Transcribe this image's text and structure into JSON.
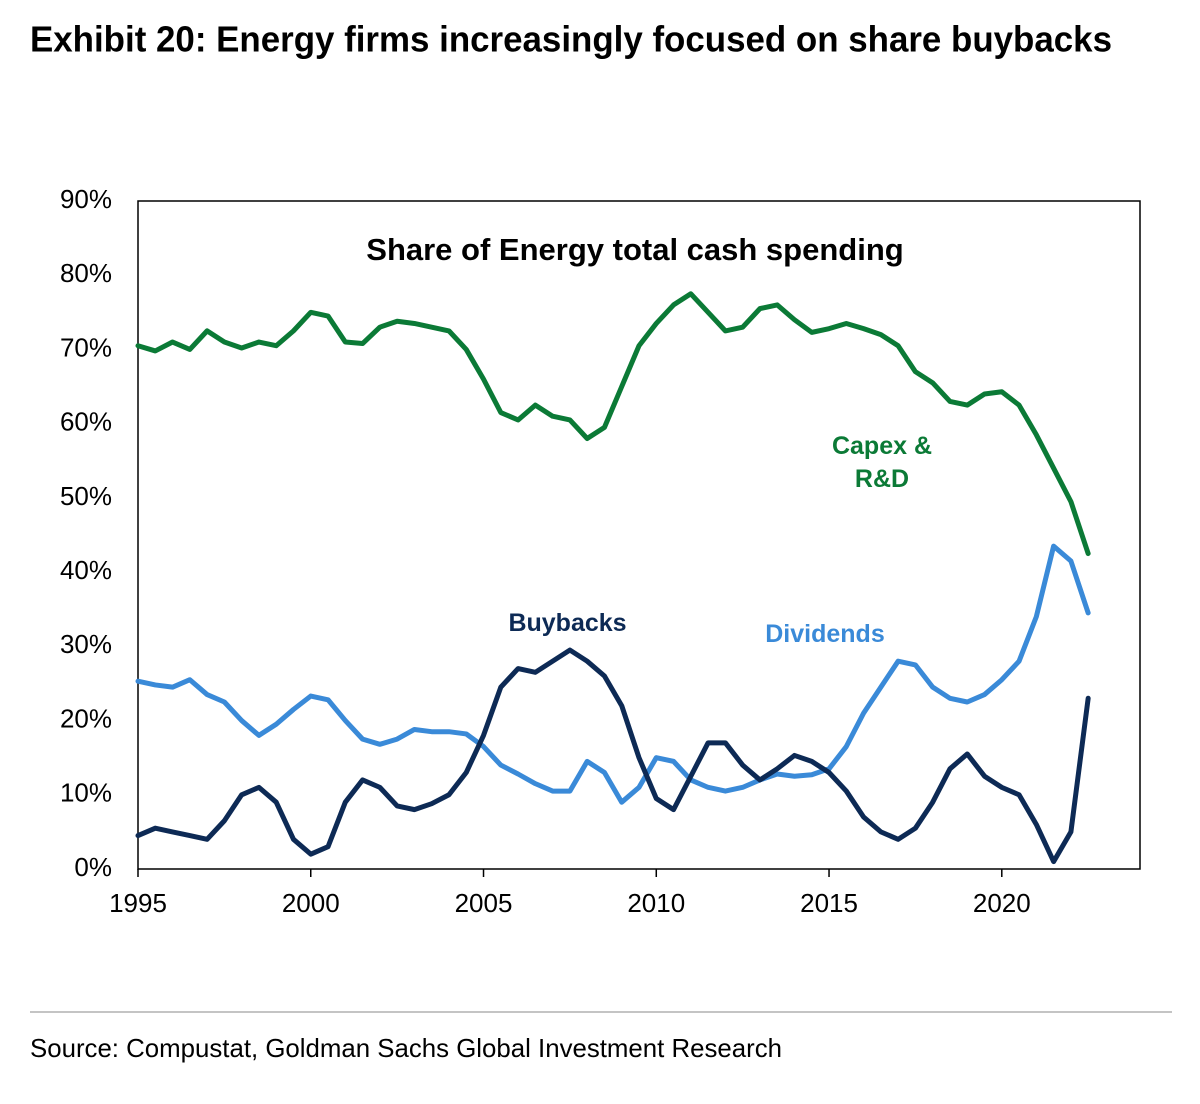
{
  "chart_data": {
    "type": "line",
    "title": "Exhibit 20: Energy firms increasingly focused on share buybacks",
    "plot_title": "Share of Energy total cash spending",
    "source": "Source: Compustat, Goldman Sachs Global Investment Research",
    "x": [
      1995,
      1995.5,
      1996,
      1996.5,
      1997,
      1997.5,
      1998,
      1998.5,
      1999,
      1999.5,
      2000,
      2000.5,
      2001,
      2001.5,
      2002,
      2002.5,
      2003,
      2003.5,
      2004,
      2004.5,
      2005,
      2005.5,
      2006,
      2006.5,
      2007,
      2007.5,
      2008,
      2008.5,
      2009,
      2009.5,
      2010,
      2010.5,
      2011,
      2011.5,
      2012,
      2012.5,
      2013,
      2013.5,
      2014,
      2014.5,
      2015,
      2015.5,
      2016,
      2016.5,
      2017,
      2017.5,
      2018,
      2018.5,
      2019,
      2019.5,
      2020,
      2020.5,
      2021,
      2021.5,
      2022,
      2022.5
    ],
    "series": [
      {
        "name": "Capex & R&D",
        "color": "#0b7a36",
        "values": [
          70.5,
          69.8,
          71,
          70,
          72.5,
          71,
          70.2,
          71,
          70.5,
          72.5,
          75,
          74.5,
          71,
          70.8,
          73,
          73.8,
          73.5,
          73,
          72.5,
          70,
          66,
          61.5,
          60.5,
          62.5,
          61,
          60.5,
          58,
          59.5,
          65,
          70.5,
          73.5,
          76,
          77.5,
          75,
          72.5,
          73,
          75.5,
          76,
          74,
          72.3,
          72.8,
          73.5,
          72.8,
          72,
          70.5,
          67,
          65.5,
          63,
          62.5,
          64,
          64.3,
          62.5,
          58.5,
          54,
          49.5,
          42.5
        ]
      },
      {
        "name": "Dividends",
        "color": "#3a8ad8",
        "values": [
          25.3,
          24.8,
          24.5,
          25.5,
          23.5,
          22.5,
          20,
          18,
          19.5,
          21.5,
          23.3,
          22.8,
          20,
          17.5,
          16.8,
          17.5,
          18.8,
          18.5,
          18.5,
          18.2,
          16.5,
          14,
          12.8,
          11.5,
          10.5,
          10.5,
          14.5,
          13,
          9,
          11,
          15,
          14.5,
          12,
          11,
          10.5,
          11,
          12,
          12.8,
          12.5,
          12.7,
          13.5,
          16.5,
          21,
          24.5,
          28,
          27.5,
          24.5,
          23,
          22.5,
          23.5,
          25.5,
          28,
          34,
          43.5,
          41.5,
          34.5
        ]
      },
      {
        "name": "Buybacks",
        "color": "#0d2a55",
        "values": [
          4.5,
          5.5,
          5,
          4.5,
          4,
          6.5,
          10,
          11,
          9,
          4,
          2,
          3,
          9,
          12,
          11,
          8.5,
          8,
          8.8,
          10,
          13,
          18,
          24.5,
          27,
          26.5,
          28,
          29.5,
          28,
          26,
          22,
          15,
          9.5,
          8,
          12.5,
          17,
          17,
          14,
          12,
          13.5,
          15.3,
          14.5,
          13,
          10.5,
          7,
          5,
          4,
          5.5,
          9,
          13.5,
          15.5,
          12.5,
          11,
          10,
          6,
          1,
          5,
          23
        ]
      }
    ],
    "xlim": [
      1995,
      2024
    ],
    "xticks": [
      1995,
      2000,
      2005,
      2010,
      2015,
      2020
    ],
    "ylim": [
      0,
      90
    ],
    "yticks": [
      {
        "value": 0,
        "label": "0%"
      },
      {
        "value": 10,
        "label": "10%"
      },
      {
        "value": 20,
        "label": "20%"
      },
      {
        "value": 30,
        "label": "30%"
      },
      {
        "value": 40,
        "label": "40%"
      },
      {
        "value": 50,
        "label": "50%"
      },
      {
        "value": 60,
        "label": "60%"
      },
      {
        "value": 70,
        "label": "70%"
      },
      {
        "value": 80,
        "label": "80%"
      },
      {
        "value": 90,
        "label": "90%"
      }
    ],
    "grid": false
  }
}
